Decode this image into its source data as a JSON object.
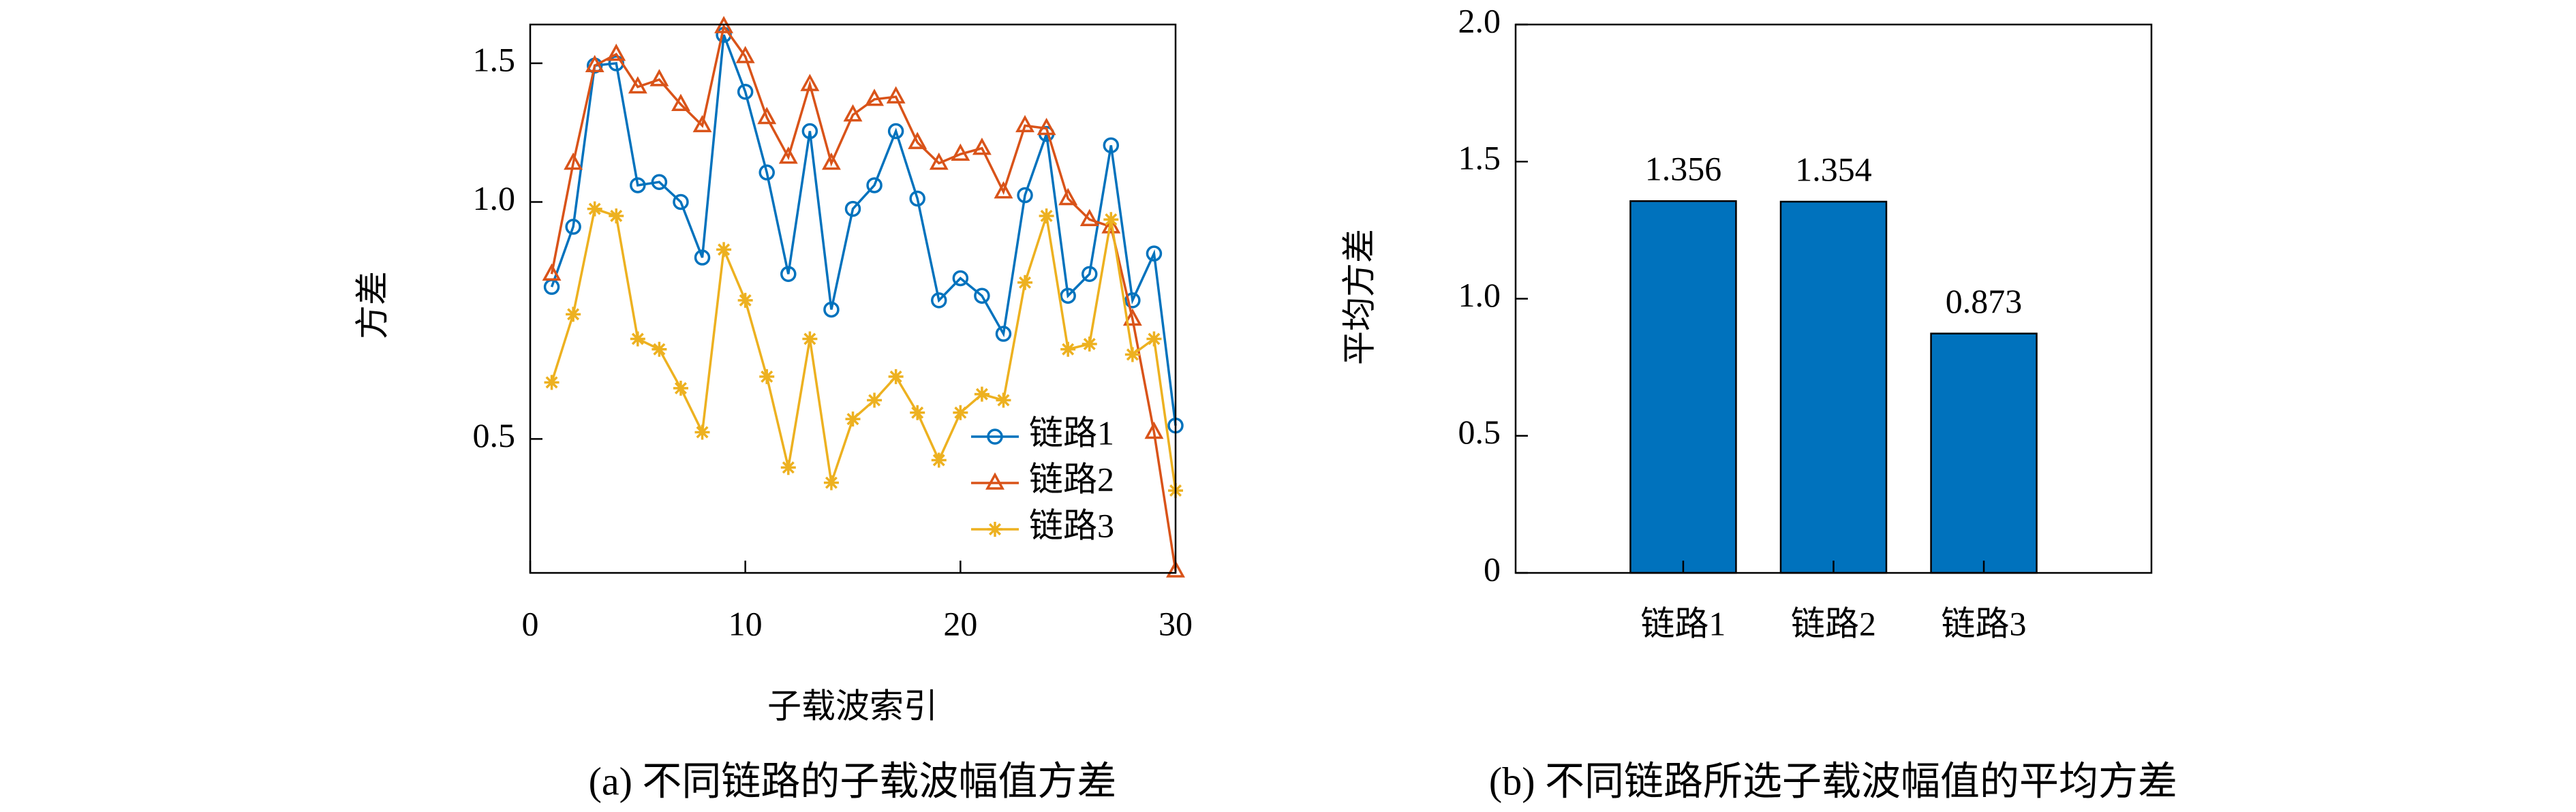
{
  "chart_data": [
    {
      "type": "line",
      "log_y": true,
      "ylabel": "方差",
      "xlabel": "子载波索引",
      "caption": "(a) 不同链路的子载波幅值方差",
      "x": [
        1,
        2,
        3,
        4,
        5,
        6,
        7,
        8,
        9,
        10,
        11,
        12,
        13,
        14,
        15,
        16,
        17,
        18,
        19,
        20,
        21,
        22,
        23,
        24,
        25,
        26,
        27,
        28,
        29,
        30
      ],
      "xlim": [
        0,
        30
      ],
      "xticks": [
        0,
        10,
        20,
        30
      ],
      "ylim": [
        0.338,
        1.68
      ],
      "yticks": [
        0.5,
        {
          "value": 1.0,
          "label": "1.0"
        },
        1.5
      ],
      "legend": "lower right",
      "series": [
        {
          "name": "链路1",
          "color": "#0072BD",
          "marker": "circle",
          "values": [
            0.78,
            0.93,
            1.49,
            1.5,
            1.05,
            1.06,
            1.0,
            0.85,
            1.63,
            1.38,
            1.09,
            0.81,
            1.23,
            0.73,
            0.98,
            1.05,
            1.23,
            1.01,
            0.75,
            0.8,
            0.76,
            0.68,
            1.02,
            1.22,
            0.76,
            0.81,
            1.18,
            0.75,
            0.86,
            0.52
          ]
        },
        {
          "name": "链路2",
          "color": "#D95319",
          "marker": "triangle",
          "values": [
            0.81,
            1.12,
            1.49,
            1.54,
            1.4,
            1.43,
            1.33,
            1.25,
            1.67,
            1.53,
            1.28,
            1.14,
            1.41,
            1.12,
            1.29,
            1.35,
            1.36,
            1.19,
            1.12,
            1.15,
            1.17,
            1.03,
            1.25,
            1.24,
            1.01,
            0.95,
            0.93,
            0.71,
            0.51,
            0.34
          ]
        },
        {
          "name": "链路3",
          "color": "#EDB120",
          "marker": "star",
          "values": [
            0.59,
            0.72,
            0.98,
            0.96,
            0.67,
            0.65,
            0.58,
            0.51,
            0.87,
            0.75,
            0.6,
            0.46,
            0.67,
            0.44,
            0.53,
            0.56,
            0.6,
            0.54,
            0.47,
            0.54,
            0.57,
            0.56,
            0.79,
            0.96,
            0.65,
            0.66,
            0.95,
            0.64,
            0.67,
            0.43
          ]
        }
      ]
    },
    {
      "type": "bar",
      "ylabel": "平均方差",
      "caption": "(b) 不同链路所选子载波幅值的平均方差",
      "categories": [
        "链路1",
        "链路2",
        "链路3"
      ],
      "values": [
        1.356,
        1.354,
        0.873
      ],
      "color": "#0072BD",
      "ylim": [
        0,
        2
      ],
      "yticks": [
        0,
        0.5,
        {
          "value": 1.0,
          "label": "1.0"
        },
        1.5,
        {
          "value": 2.0,
          "label": "2.0"
        }
      ]
    }
  ]
}
